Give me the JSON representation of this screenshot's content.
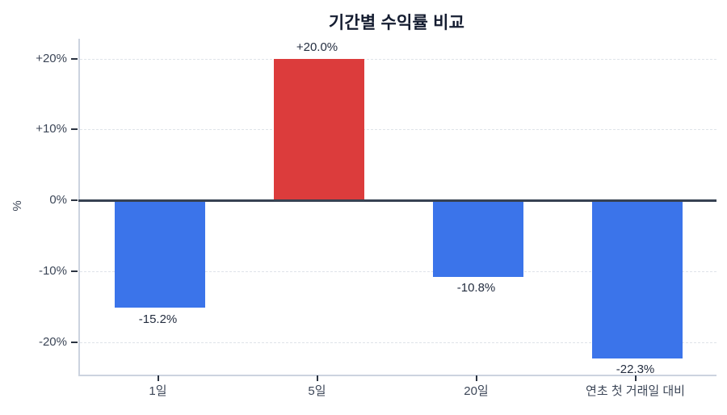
{
  "chart_data": {
    "type": "bar",
    "title": "기간별 수익률 비교",
    "xlabel": "",
    "ylabel": "%",
    "categories": [
      "1일",
      "5일",
      "20일",
      "연초 첫 거래일 대비"
    ],
    "values": [
      -15.2,
      20.0,
      -10.8,
      -22.3
    ],
    "data_labels": [
      "-15.2%",
      "+20.0%",
      "-10.8%",
      "-22.3%"
    ],
    "yticks": {
      "values": [
        20,
        10,
        0,
        -10,
        -20
      ],
      "labels": [
        "+20%",
        "+10%",
        "0%",
        "-10%",
        "-20%"
      ]
    },
    "ylim": [
      -24.6,
      22.8
    ],
    "legend": "none",
    "grid": "horizontal dashed gridlines at ±10% and ±20%, solid dark line at 0%",
    "positive_color": "#dc3c3c",
    "negative_color": "#3b74ea",
    "zero_line_color": "#374252",
    "axis_line_color": "#ccd3df",
    "gridline_color": "#dfe3e9",
    "title_color": "#151d31",
    "tick_label_color": "#3c4657",
    "data_label_color": "#242e40"
  }
}
